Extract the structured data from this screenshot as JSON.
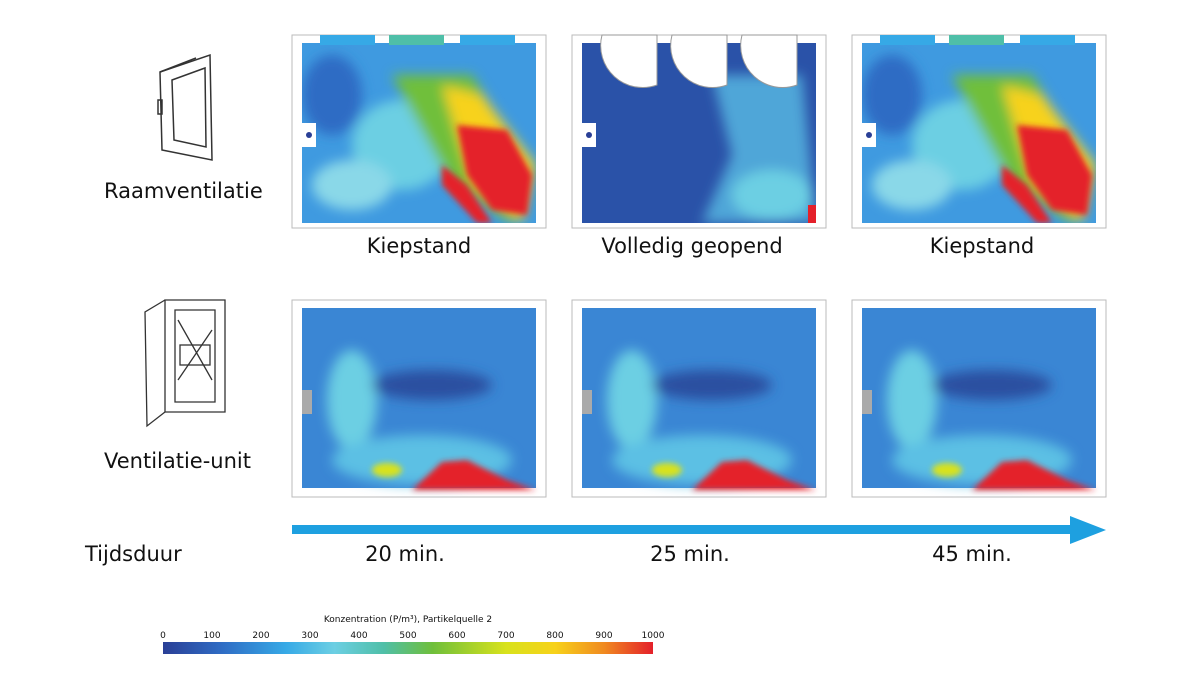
{
  "rows": [
    {
      "label": "Raamventilatie",
      "captions": [
        "Kiepstand",
        "Volledig geopend",
        "Kiepstand"
      ]
    },
    {
      "label": "Ventilatie-unit"
    }
  ],
  "timeline": {
    "label": "Tijdsduur",
    "times": [
      "20 min.",
      "25 min.",
      "45 min."
    ]
  },
  "legend": {
    "title": "Konzentration (P/m³), Partikelquelle 2",
    "ticks": [
      0,
      100,
      200,
      300,
      400,
      500,
      600,
      700,
      800,
      900,
      1000
    ]
  }
}
